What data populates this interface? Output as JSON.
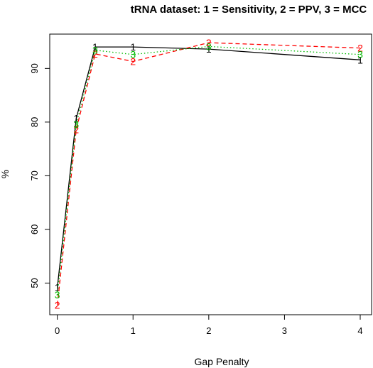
{
  "chart_data": {
    "type": "line",
    "title": "tRNA dataset: 1 = Sensitivity, 2 = PPV, 3 = MCC",
    "xlabel": "Gap Penalty",
    "ylabel": "%",
    "xlim": [
      -0.1,
      4.15
    ],
    "ylim": [
      44.1,
      96.4
    ],
    "xticks": [
      0,
      1,
      2,
      3,
      4
    ],
    "yticks": [
      50,
      60,
      70,
      80,
      90
    ],
    "grid": false,
    "x": [
      0,
      0.25,
      0.5,
      1,
      2,
      4
    ],
    "series": [
      {
        "name": "1",
        "marker": "1",
        "color": "#000000",
        "dash": "solid",
        "values": [
          49.2,
          80.7,
          94.0,
          94.0,
          93.6,
          91.6
        ]
      },
      {
        "name": "2",
        "marker": "2",
        "color": "#ff0000",
        "dash": "dashed",
        "values": [
          45.9,
          78.6,
          92.7,
          91.3,
          94.8,
          93.8
        ]
      },
      {
        "name": "3",
        "marker": "3",
        "color": "#00bb00",
        "dash": "dotted",
        "values": [
          47.8,
          79.6,
          93.4,
          92.6,
          94.1,
          92.6
        ]
      }
    ]
  }
}
